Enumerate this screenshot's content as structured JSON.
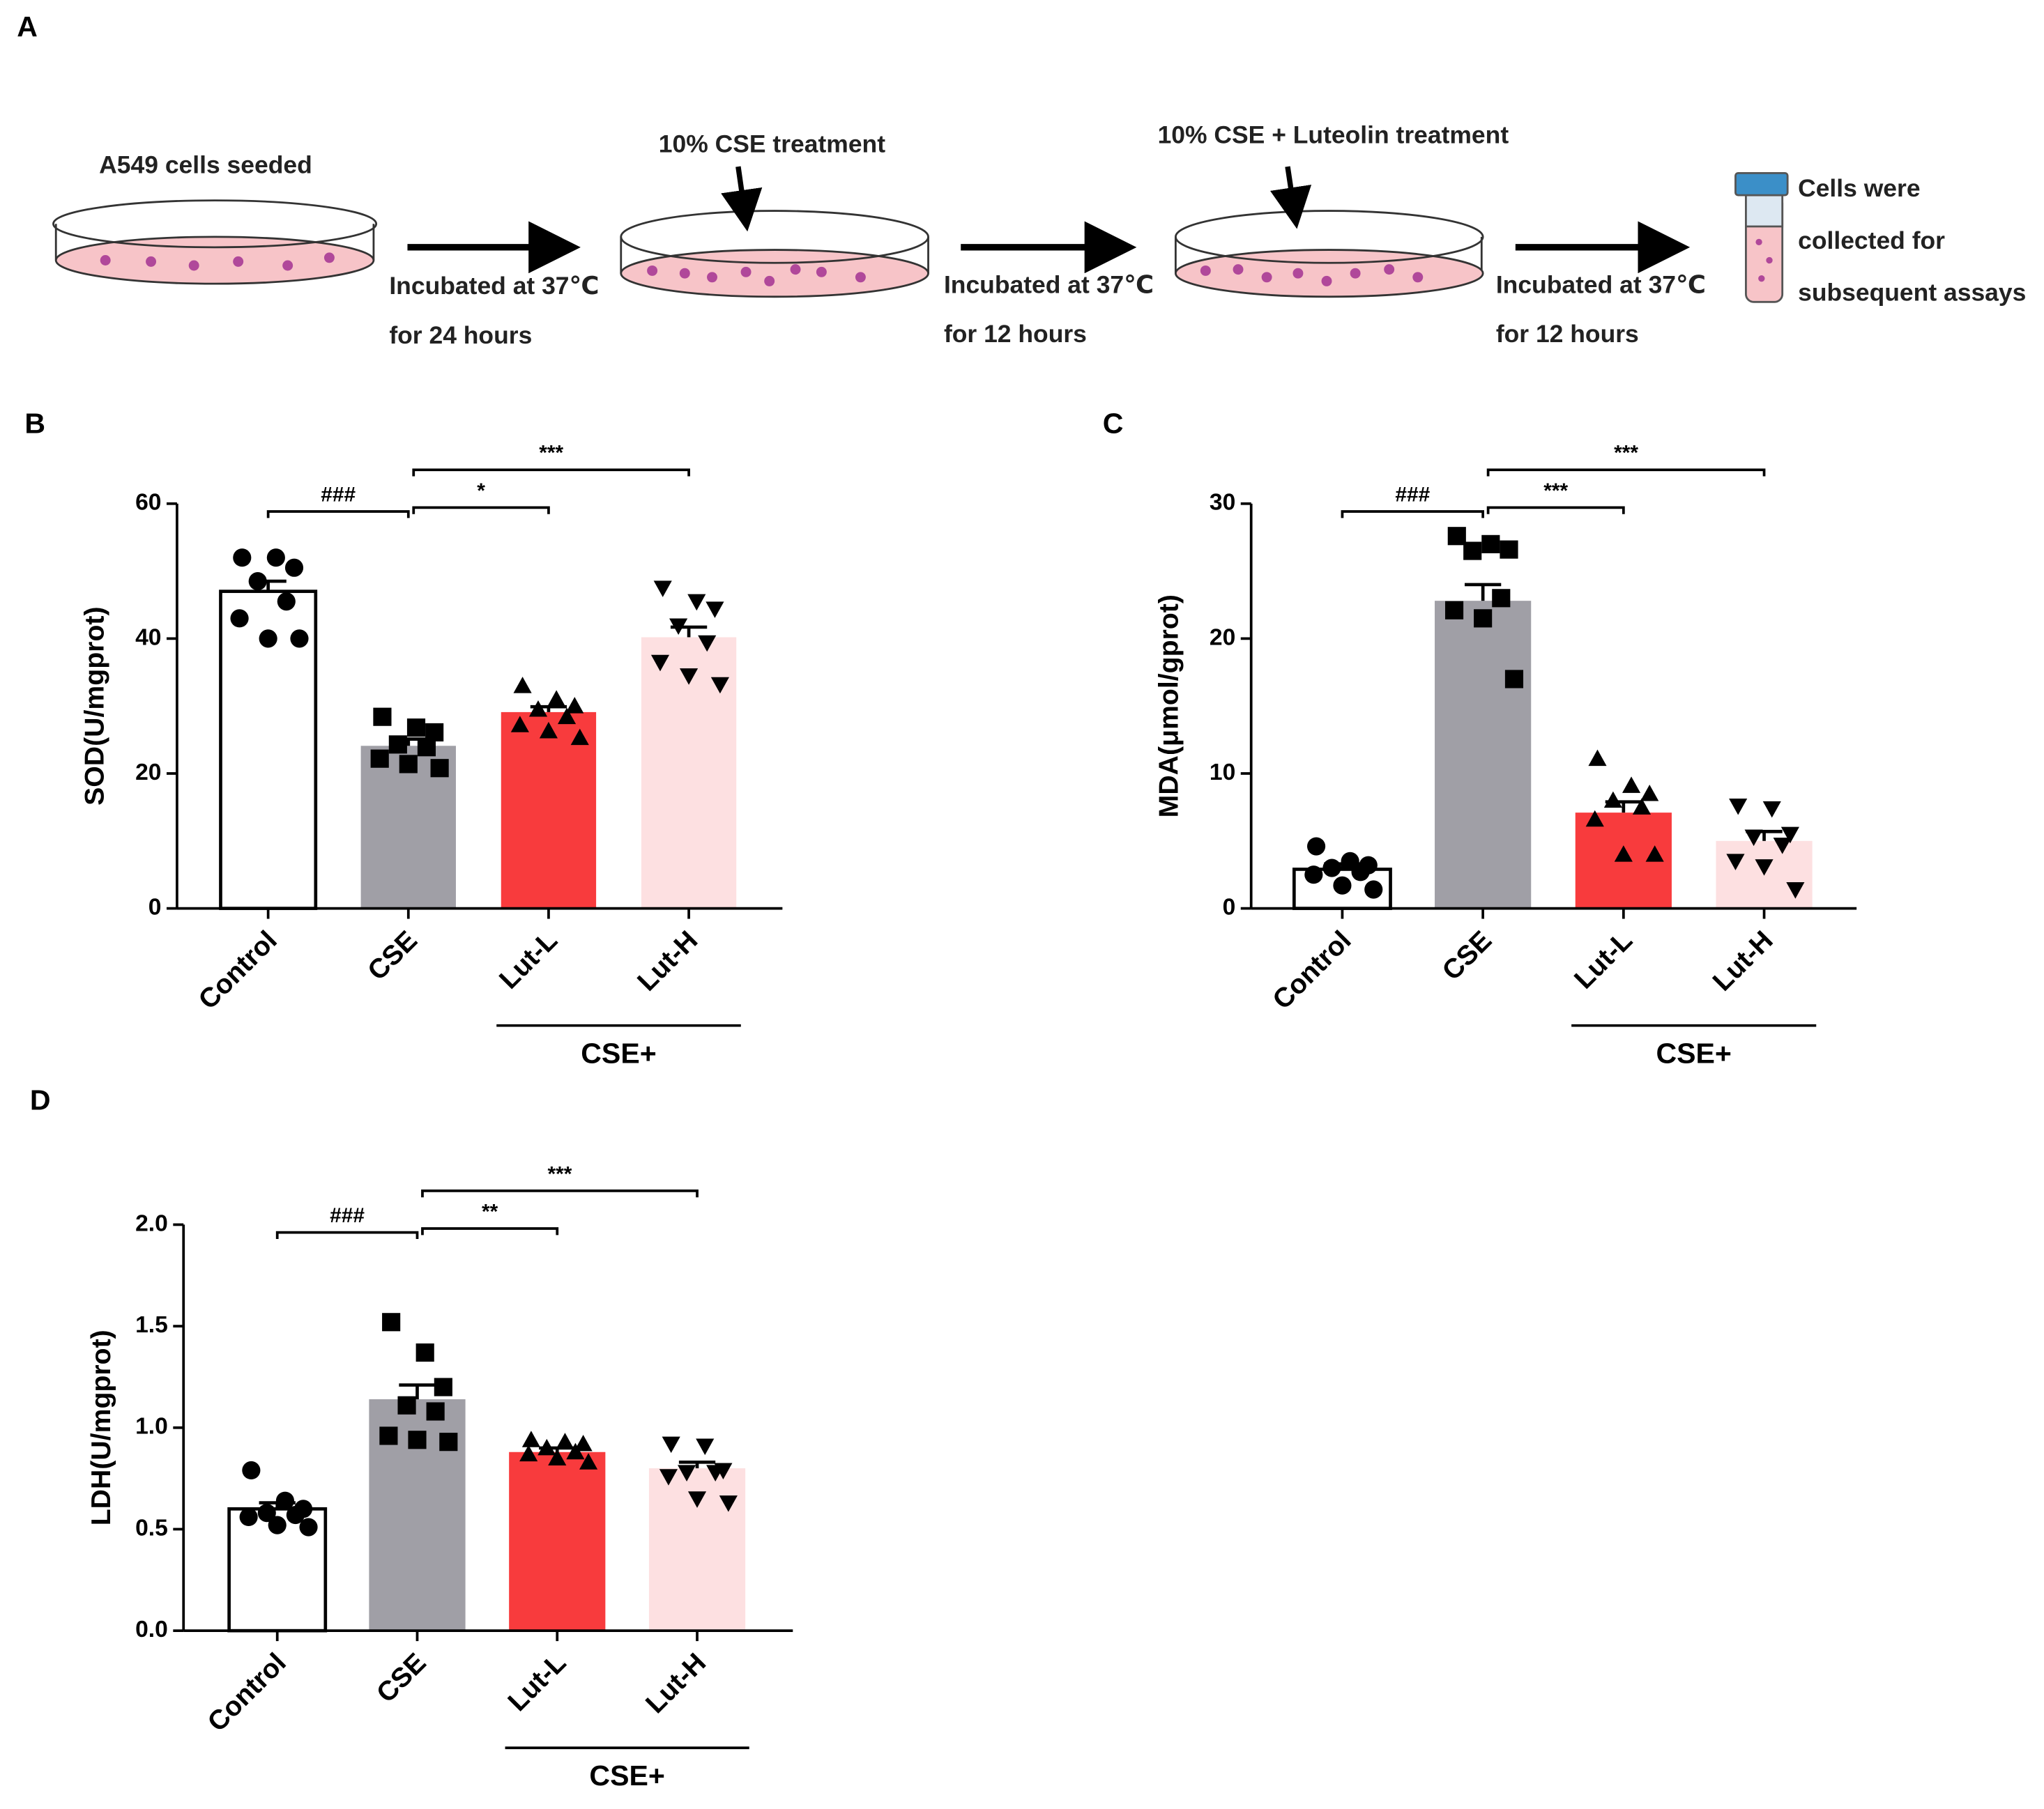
{
  "panel_a": {
    "label": "A",
    "texts": [
      "A549 cells seeded",
      "Incubated at 37℃",
      "for 24 hours",
      "10% CSE treatment",
      "Incubated at 37℃",
      "for 12 hours",
      "10% CSE + Luteolin treatment",
      "Incubated at 37℃",
      "for 12 hours",
      "Cells were",
      "collected for",
      "subsequent assays"
    ]
  },
  "chart_data": [
    {
      "type": "bar",
      "panel": "B",
      "ylabel": "SOD(U/mgprot)",
      "categories": [
        "Control",
        "CSE",
        "Lut-L",
        "Lut-H"
      ],
      "colors": [
        "#ffffff",
        "#a09fa6",
        "#f83b3d",
        "#fde0e1"
      ],
      "markers": [
        "circle",
        "square",
        "triangle",
        "triangle-down"
      ],
      "values": [
        47,
        24.1,
        29.1,
        40.2
      ],
      "errors": [
        1.5,
        1,
        0.8,
        1.5
      ],
      "points": [
        [
          52,
          52,
          50.5,
          48.5,
          45.5,
          43,
          40,
          40
        ],
        [
          28.4,
          26.8,
          26.1,
          24.3,
          23.9,
          22.2,
          21.4,
          20.8
        ],
        [
          33,
          31,
          30,
          29.5,
          28.4,
          27.2,
          26.3,
          25.3
        ],
        [
          47.5,
          45.5,
          44.4,
          41.9,
          39.4,
          36.5,
          34.5,
          33.2
        ]
      ],
      "ylim": [
        0,
        60
      ],
      "yticks": [
        0,
        20,
        40,
        60
      ],
      "comparisons": [
        "###",
        "*",
        "***"
      ],
      "group_label": "CSE+"
    },
    {
      "type": "bar",
      "panel": "C",
      "ylabel": "MDA(μmol/gprot)",
      "categories": [
        "Control",
        "CSE",
        "Lut-L",
        "Lut-H"
      ],
      "colors": [
        "#ffffff",
        "#a09fa6",
        "#f83b3d",
        "#fde0e1"
      ],
      "markers": [
        "circle",
        "square",
        "triangle",
        "triangle-down"
      ],
      "values": [
        2.9,
        22.8,
        7.1,
        5.0
      ],
      "errors": [
        0.4,
        1.2,
        0.8,
        0.7
      ],
      "points": [
        [
          4.6,
          3.5,
          3.2,
          3.0,
          2.7,
          2.5,
          1.7,
          1.4
        ],
        [
          27.6,
          27.0,
          26.6,
          26.5,
          23.0,
          22.1,
          21.5,
          17.0
        ],
        [
          11.1,
          9.1,
          8.5,
          8.0,
          7.5,
          6.6,
          4.0,
          4.0
        ],
        [
          7.6,
          7.4,
          5.5,
          5.3,
          4.7,
          3.5,
          3.1,
          1.4
        ]
      ],
      "ylim": [
        0,
        30
      ],
      "yticks": [
        0,
        10,
        20,
        30
      ],
      "comparisons": [
        "###",
        "***",
        "***"
      ],
      "group_label": "CSE+"
    },
    {
      "type": "bar",
      "panel": "D",
      "ylabel": "LDH(U/mgprot)",
      "categories": [
        "Control",
        "CSE",
        "Lut-L",
        "Lut-H"
      ],
      "colors": [
        "#ffffff",
        "#a09fa6",
        "#f83b3d",
        "#fde0e1"
      ],
      "markers": [
        "circle",
        "square",
        "triangle",
        "triangle-down"
      ],
      "values": [
        0.6,
        1.14,
        0.88,
        0.8
      ],
      "errors": [
        0.03,
        0.07,
        0.02,
        0.03
      ],
      "points": [
        [
          0.79,
          0.64,
          0.6,
          0.58,
          0.57,
          0.56,
          0.52,
          0.51
        ],
        [
          1.52,
          1.37,
          1.2,
          1.11,
          1.08,
          0.96,
          0.94,
          0.93
        ],
        [
          0.94,
          0.93,
          0.92,
          0.9,
          0.88,
          0.87,
          0.85,
          0.83
        ],
        [
          0.92,
          0.91,
          0.79,
          0.78,
          0.78,
          0.76,
          0.65,
          0.63
        ]
      ],
      "ylim": [
        0,
        2
      ],
      "yticks": [
        {
          "value": 0,
          "label": "0.0"
        },
        {
          "value": 0.5,
          "label": "0.5"
        },
        {
          "value": 1,
          "label": "1.0"
        },
        {
          "value": 1.5,
          "label": "1.5"
        },
        {
          "value": 2,
          "label": "2.0"
        }
      ],
      "comparisons": [
        "###",
        "**",
        "***"
      ],
      "group_label": "CSE+"
    }
  ]
}
